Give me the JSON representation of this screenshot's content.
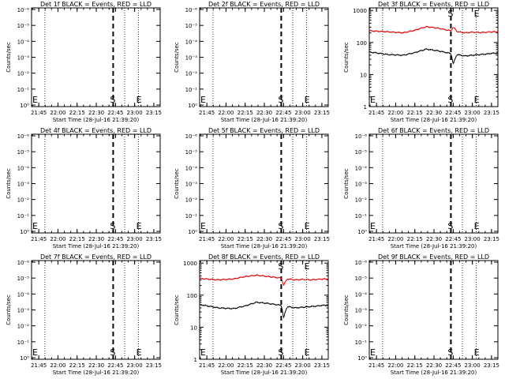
{
  "chart_data": [
    {
      "title": "Det 1f BLACK = Events, RED = LLD",
      "type": "line",
      "scale": "log_power",
      "ylabel": "Counts/sec",
      "xlabel": "Start Time (28-Jul-16 21:39:20)",
      "yticks": [
        "10⁰",
        "10⁻¹",
        "10⁻²",
        "10⁻³",
        "10⁻⁴",
        "10⁻⁵",
        "10⁻⁶"
      ],
      "series": []
    },
    {
      "title": "Det 2f BLACK = Events, RED = LLD",
      "type": "line",
      "scale": "log_power",
      "ylabel": "Counts/sec",
      "xlabel": "Start Time (28-Jul-16 21:39:20)",
      "yticks": [
        "10⁰",
        "10⁻¹",
        "10⁻²",
        "10⁻³",
        "10⁻⁴",
        "10⁻⁵",
        "10⁻⁶"
      ],
      "series": []
    },
    {
      "title": "Det 3f BLACK = Events, RED = LLD",
      "type": "line",
      "scale": "log_counts",
      "ylabel": "Counts/sec",
      "xlabel": "Start Time (28-Jul-16 21:39:20)",
      "yticks": [
        "1",
        "10",
        "100",
        "1000"
      ],
      "series": [
        {
          "color": "#dd0000",
          "x": [
            21.67,
            21.9,
            22.1,
            22.25,
            22.4,
            22.55,
            22.72,
            22.75,
            22.8,
            22.9,
            23.0,
            23.1,
            23.2,
            23.25
          ],
          "y": [
            230,
            215,
            200,
            240,
            310,
            280,
            230,
            300,
            220,
            200,
            210,
            205,
            210,
            215
          ]
        },
        {
          "color": "#000000",
          "x": [
            21.67,
            21.9,
            22.1,
            22.25,
            22.4,
            22.55,
            22.72,
            22.75,
            22.8,
            22.9,
            23.0,
            23.1,
            23.2,
            23.25
          ],
          "y": [
            50,
            42,
            40,
            48,
            62,
            55,
            45,
            20,
            42,
            38,
            40,
            42,
            44,
            46
          ]
        }
      ]
    },
    {
      "title": "Det 4f BLACK = Events, RED = LLD",
      "type": "line",
      "scale": "log_power",
      "ylabel": "Counts/sec",
      "xlabel": "Start Time (28-Jul-16 21:39:20)",
      "yticks": [
        "10⁰",
        "10⁻¹",
        "10⁻²",
        "10⁻³",
        "10⁻⁴",
        "10⁻⁵",
        "10⁻⁶"
      ],
      "series": []
    },
    {
      "title": "Det 5f BLACK = Events, RED = LLD",
      "type": "line",
      "scale": "log_power",
      "ylabel": "Counts/sec",
      "xlabel": "Start Time (28-Jul-16 21:39:20)",
      "yticks": [
        "10⁰",
        "10⁻¹",
        "10⁻²",
        "10⁻³",
        "10⁻⁴",
        "10⁻⁵",
        "10⁻⁶"
      ],
      "series": []
    },
    {
      "title": "Det 6f BLACK = Events, RED = LLD",
      "type": "line",
      "scale": "log_power",
      "ylabel": "Counts/sec",
      "xlabel": "Start Time (28-Jul-16 21:39:20)",
      "yticks": [
        "10⁰",
        "10⁻¹",
        "10⁻²",
        "10⁻³",
        "10⁻⁴",
        "10⁻⁵",
        "10⁻⁶"
      ],
      "series": []
    },
    {
      "title": "Det 7f BLACK = Events, RED = LLD",
      "type": "line",
      "scale": "log_power",
      "ylabel": "Counts/sec",
      "xlabel": "Start Time (28-Jul-16 21:39:20)",
      "yticks": [
        "10⁰",
        "10⁻¹",
        "10⁻²",
        "10⁻³",
        "10⁻⁴",
        "10⁻⁵",
        "10⁻⁶"
      ],
      "series": []
    },
    {
      "title": "Det 8f BLACK = Events, RED = LLD",
      "type": "line",
      "scale": "log_counts",
      "ylabel": "Counts/sec",
      "xlabel": "Start Time (28-Jul-16 21:39:20)",
      "yticks": [
        "1",
        "10",
        "100",
        "1000"
      ],
      "series": [
        {
          "color": "#dd0000",
          "x": [
            21.67,
            21.9,
            22.1,
            22.25,
            22.4,
            22.55,
            22.72,
            22.75,
            22.8,
            22.9,
            23.0,
            23.1,
            23.2,
            23.25
          ],
          "y": [
            330,
            300,
            320,
            380,
            420,
            380,
            340,
            200,
            320,
            300,
            310,
            300,
            310,
            320
          ]
        },
        {
          "color": "#000000",
          "x": [
            21.67,
            21.9,
            22.1,
            22.25,
            22.4,
            22.55,
            22.72,
            22.75,
            22.8,
            22.9,
            23.0,
            23.1,
            23.2,
            23.25
          ],
          "y": [
            50,
            40,
            38,
            46,
            60,
            55,
            48,
            18,
            44,
            40,
            42,
            44,
            46,
            48
          ]
        }
      ]
    },
    {
      "title": "Det 9f BLACK = Events, RED = LLD",
      "type": "line",
      "scale": "log_power",
      "ylabel": "Counts/sec",
      "xlabel": "Start Time (28-Jul-16 21:39:20)",
      "yticks": [
        "10⁰",
        "10⁻¹",
        "10⁻²",
        "10⁻³",
        "10⁻⁴",
        "10⁻⁵",
        "10⁻⁶"
      ],
      "series": []
    }
  ],
  "xaxis": {
    "range": [
      21.656,
      23.333
    ],
    "ticks": [
      {
        "v": 21.75,
        "label": "21:45"
      },
      {
        "v": 22.0,
        "label": "22:00"
      },
      {
        "v": 22.25,
        "label": "22:15"
      },
      {
        "v": 22.5,
        "label": "22:30"
      },
      {
        "v": 22.75,
        "label": "22:45"
      },
      {
        "v": 23.0,
        "label": "23:00"
      },
      {
        "v": 23.25,
        "label": "23:15"
      }
    ]
  },
  "markers": {
    "dotted": [
      21.83,
      22.87,
      23.05
    ],
    "dashed": 22.72,
    "s_label": "S",
    "e_label": "E",
    "s_at": 22.72,
    "e_at": 23.0,
    "e_left_label": "E"
  }
}
